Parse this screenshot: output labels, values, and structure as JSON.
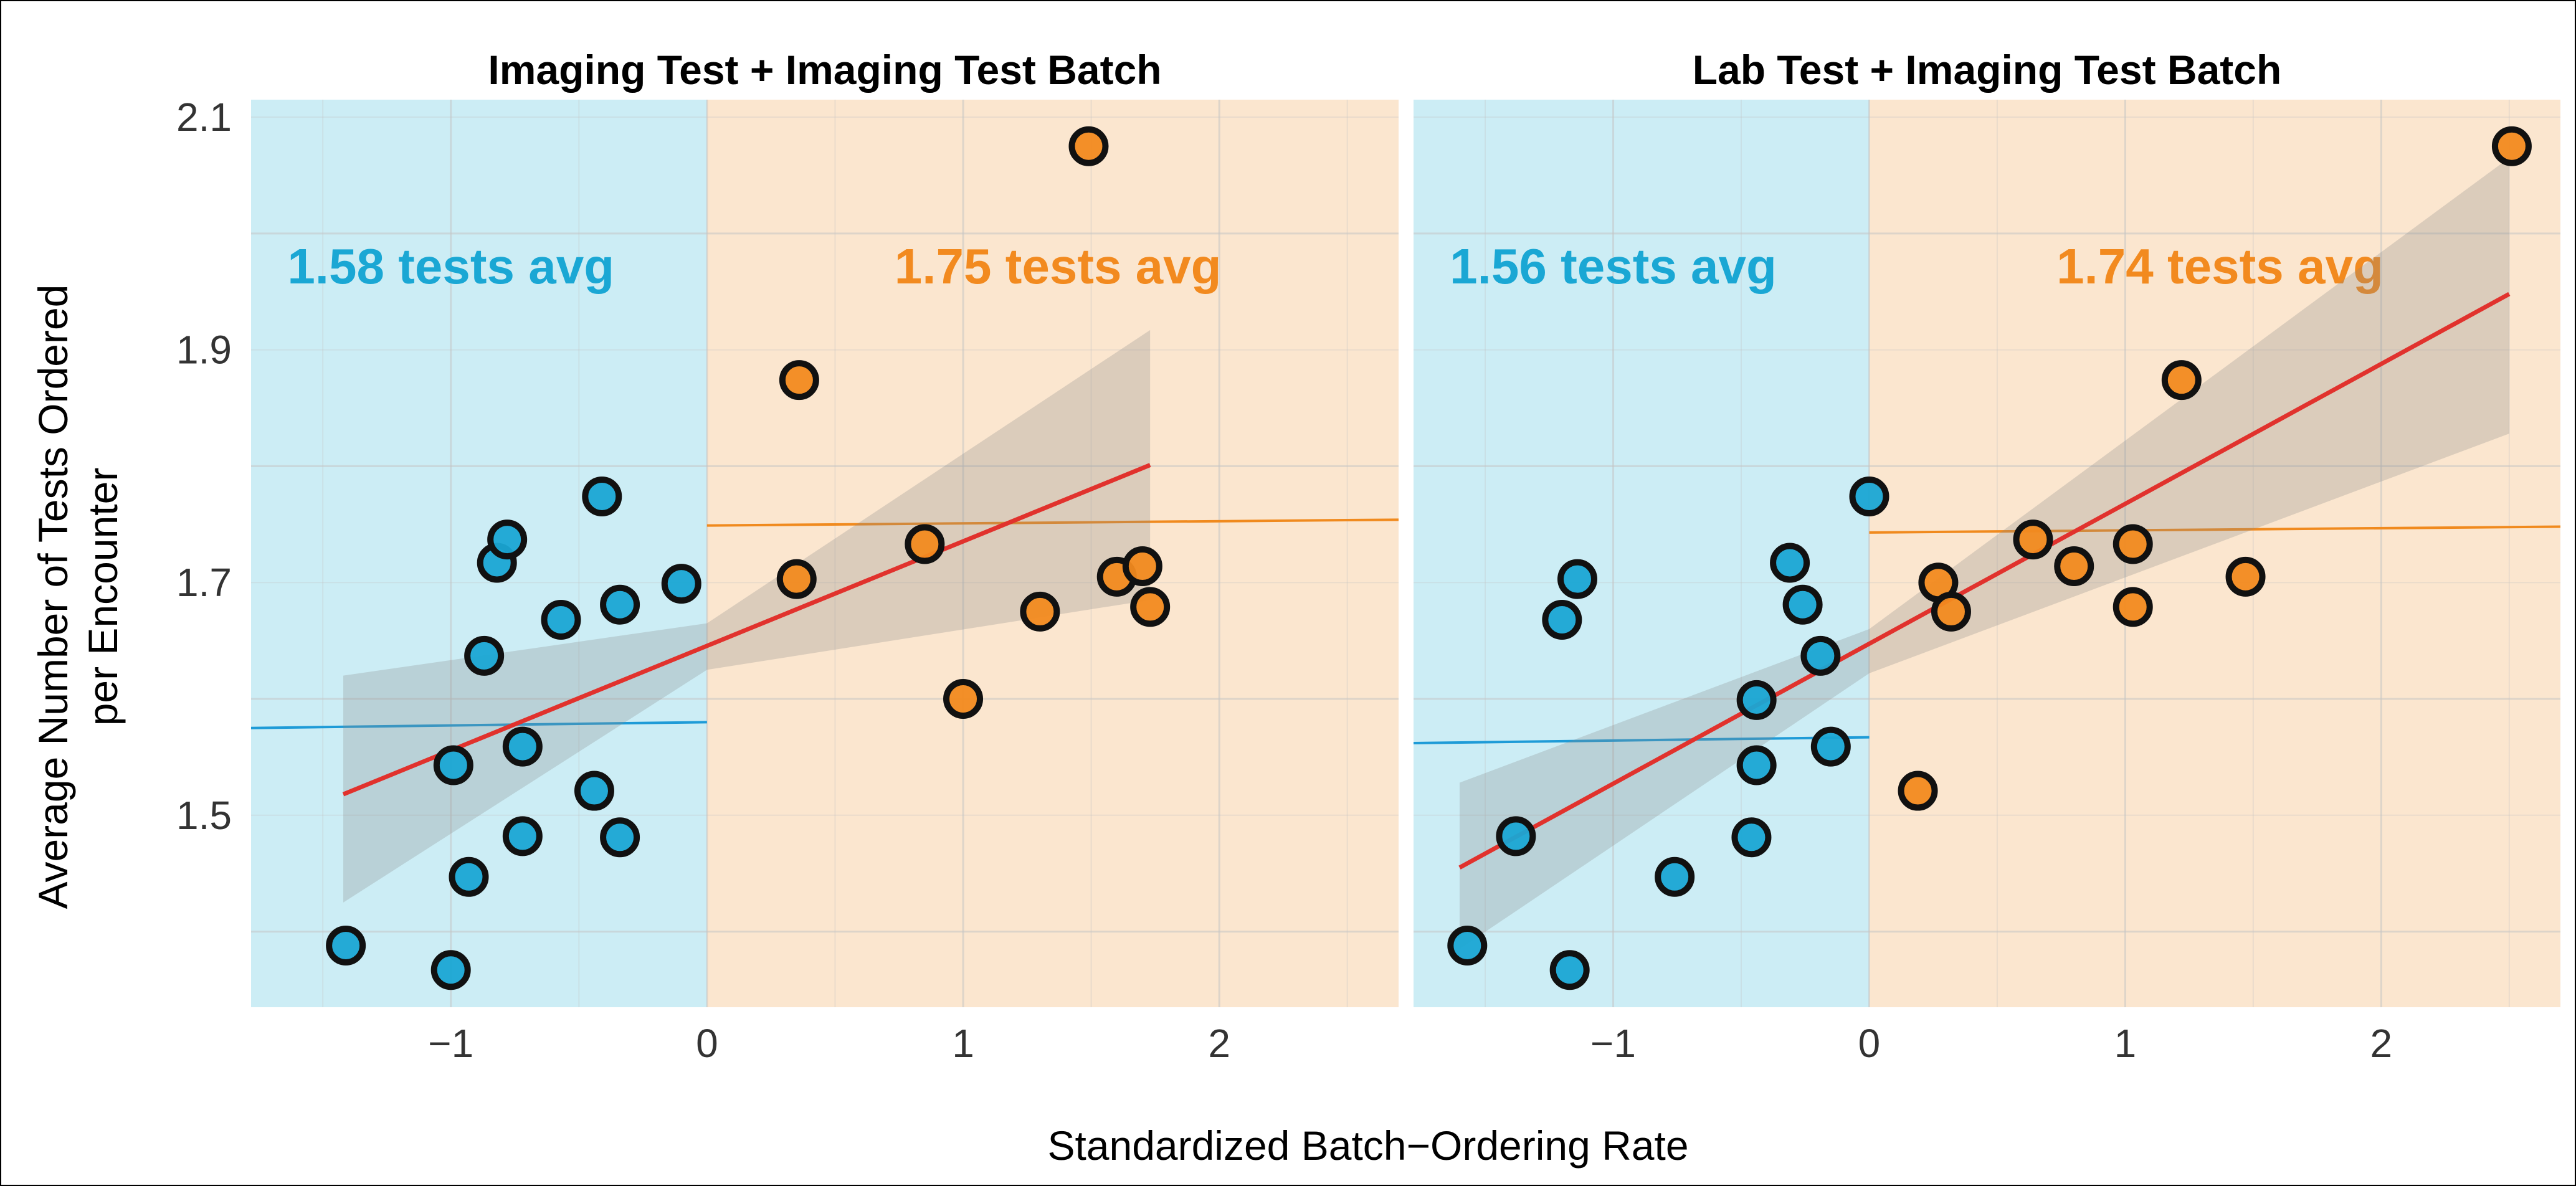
{
  "chart_data": {
    "type": "scatter",
    "xlabel": "Standardized Batch−Ordering Rate",
    "ylabel_lines": [
      "Average Number of Tests Ordered",
      "per Encounter"
    ],
    "colors": {
      "blue_point": "#1aa7d4",
      "orange_point": "#f28a1f",
      "blue_region": "#ccedf5",
      "orange_region": "#fbe6cf",
      "fit_line": "#e1322d",
      "ci_band": "#8a8a8a",
      "blue_avg_line": "#1e9bd7",
      "orange_avg_line": "#f08a1e",
      "blue_text": "#1aa7d4",
      "orange_text": "#f28a1f"
    },
    "panels": [
      {
        "title": "Imaging Test + Imaging Test Batch",
        "xlim": [
          -1.78,
          2.7
        ],
        "ylim": [
          1.335,
          2.115
        ],
        "xticks": [
          -1,
          0,
          1,
          2
        ],
        "xtick_labels": [
          "−1",
          "0",
          "1",
          "2"
        ],
        "yticks": [
          1.5,
          1.7,
          1.9,
          2.1
        ],
        "ytick_labels": [
          "1.5",
          "1.7",
          "1.9",
          "2.1"
        ],
        "left_avg_label": "1.58 tests avg",
        "right_avg_label": "1.75 tests avg",
        "left_avg_line": {
          "x": [
            -1.78,
            0
          ],
          "y": [
            1.575,
            1.58
          ]
        },
        "right_avg_line": {
          "x": [
            0,
            2.7
          ],
          "y": [
            1.749,
            1.754
          ]
        },
        "fit": {
          "x": [
            -1.42,
            1.73
          ],
          "y": [
            1.518,
            1.801
          ]
        },
        "ci": {
          "x": [
            -1.42,
            0,
            1.73
          ],
          "lower": [
            1.425,
            1.625,
            1.685
          ],
          "upper": [
            1.62,
            1.665,
            1.917
          ]
        },
        "points_left": [
          {
            "x": -1.41,
            "y": 1.388
          },
          {
            "x": -1.0,
            "y": 1.367
          },
          {
            "x": -0.99,
            "y": 1.543
          },
          {
            "x": -0.93,
            "y": 1.447
          },
          {
            "x": -0.87,
            "y": 1.637
          },
          {
            "x": -0.82,
            "y": 1.717
          },
          {
            "x": -0.78,
            "y": 1.737
          },
          {
            "x": -0.72,
            "y": 1.482
          },
          {
            "x": -0.72,
            "y": 1.559
          },
          {
            "x": -0.57,
            "y": 1.668
          },
          {
            "x": -0.44,
            "y": 1.521
          },
          {
            "x": -0.41,
            "y": 1.774
          },
          {
            "x": -0.34,
            "y": 1.681
          },
          {
            "x": -0.34,
            "y": 1.481
          },
          {
            "x": -0.1,
            "y": 1.699
          }
        ],
        "points_right": [
          {
            "x": 0.35,
            "y": 1.703
          },
          {
            "x": 0.36,
            "y": 1.874
          },
          {
            "x": 0.85,
            "y": 1.733
          },
          {
            "x": 1.0,
            "y": 1.6
          },
          {
            "x": 1.3,
            "y": 1.675
          },
          {
            "x": 1.49,
            "y": 2.075
          },
          {
            "x": 1.6,
            "y": 1.705
          },
          {
            "x": 1.7,
            "y": 1.714
          },
          {
            "x": 1.73,
            "y": 1.679
          }
        ]
      },
      {
        "title": "Lab Test + Imaging Test Batch",
        "xlim": [
          -1.78,
          2.7
        ],
        "ylim": [
          1.335,
          2.115
        ],
        "xticks": [
          -1,
          0,
          1,
          2
        ],
        "xtick_labels": [
          "−1",
          "0",
          "1",
          "2"
        ],
        "yticks": [
          1.5,
          1.7,
          1.9,
          2.1
        ],
        "ytick_labels": [
          "1.5",
          "1.7",
          "1.9",
          "2.1"
        ],
        "left_avg_label": "1.56 tests avg",
        "right_avg_label": "1.74 tests avg",
        "left_avg_line": {
          "x": [
            -1.78,
            0
          ],
          "y": [
            1.562,
            1.567
          ]
        },
        "right_avg_line": {
          "x": [
            0,
            2.7
          ],
          "y": [
            1.743,
            1.748
          ]
        },
        "fit": {
          "x": [
            -1.6,
            2.5
          ],
          "y": [
            1.455,
            1.948
          ]
        },
        "ci": {
          "x": [
            -1.6,
            0,
            2.5
          ],
          "lower": [
            1.385,
            1.622,
            1.828
          ],
          "upper": [
            1.528,
            1.66,
            2.065
          ]
        },
        "points_left": [
          {
            "x": -1.57,
            "y": 1.388
          },
          {
            "x": -1.38,
            "y": 1.482
          },
          {
            "x": -1.17,
            "y": 1.367
          },
          {
            "x": -1.2,
            "y": 1.668
          },
          {
            "x": -1.14,
            "y": 1.703
          },
          {
            "x": -0.76,
            "y": 1.447
          },
          {
            "x": -0.46,
            "y": 1.481
          },
          {
            "x": -0.44,
            "y": 1.599
          },
          {
            "x": -0.44,
            "y": 1.543
          },
          {
            "x": -0.31,
            "y": 1.717
          },
          {
            "x": -0.26,
            "y": 1.681
          },
          {
            "x": -0.19,
            "y": 1.637
          },
          {
            "x": -0.15,
            "y": 1.559
          },
          {
            "x": 0.0,
            "y": 1.774
          }
        ],
        "points_right": [
          {
            "x": 0.19,
            "y": 1.521
          },
          {
            "x": 0.27,
            "y": 1.7
          },
          {
            "x": 0.32,
            "y": 1.675
          },
          {
            "x": 0.64,
            "y": 1.737
          },
          {
            "x": 0.8,
            "y": 1.714
          },
          {
            "x": 1.03,
            "y": 1.733
          },
          {
            "x": 1.03,
            "y": 1.679
          },
          {
            "x": 1.22,
            "y": 1.874
          },
          {
            "x": 1.47,
            "y": 1.705
          },
          {
            "x": 2.51,
            "y": 2.075
          }
        ]
      }
    ]
  }
}
